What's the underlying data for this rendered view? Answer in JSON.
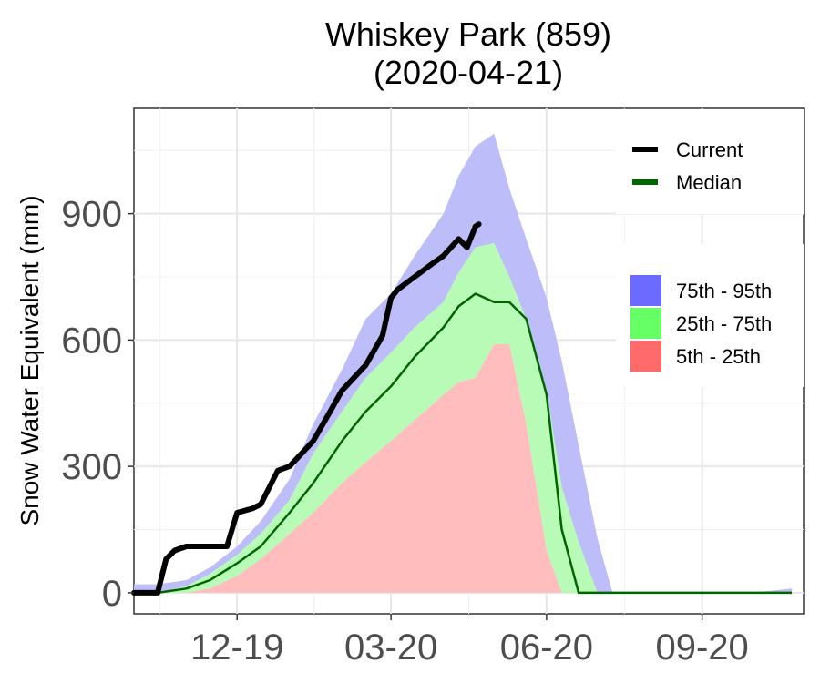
{
  "chart_data": {
    "type": "area",
    "title": "Whiskey Park (859)",
    "subtitle": "(2020-04-21)",
    "ylabel": "Snow Water Equivalent (mm)",
    "xlabel": "",
    "x_ticks": [
      "12-19",
      "03-20",
      "06-20",
      "09-20"
    ],
    "y_ticks": [
      0,
      300,
      600,
      900
    ],
    "xlim": [
      "2019-10-01",
      "2020-10-31"
    ],
    "ylim": [
      -50,
      1150
    ],
    "grid": true,
    "legend_lines": [
      {
        "name": "Current",
        "color": "#000000"
      },
      {
        "name": "Median",
        "color": "#006400"
      }
    ],
    "legend_bands": [
      {
        "name": "75th - 95th",
        "color": "#6b6bff"
      },
      {
        "name": "25th - 75th",
        "color": "#66ff66"
      },
      {
        "name": "5th - 25th",
        "color": "#ff6b6b"
      }
    ],
    "band_colors": {
      "p95": "#bdbdf9",
      "p75": "#b7fbb7",
      "p25": "#ffbdbd"
    },
    "dates": [
      "2019-10-01",
      "2019-10-15",
      "2019-11-01",
      "2019-11-15",
      "2019-12-01",
      "2019-12-15",
      "2020-01-01",
      "2020-01-15",
      "2020-02-01",
      "2020-02-15",
      "2020-03-01",
      "2020-03-15",
      "2020-04-01",
      "2020-04-10",
      "2020-04-20",
      "2020-05-01",
      "2020-05-10",
      "2020-05-20",
      "2020-06-01",
      "2020-06-10",
      "2020-06-20",
      "2020-07-01",
      "2020-07-10",
      "2020-07-20",
      "2020-08-01",
      "2020-09-01",
      "2020-10-01",
      "2020-10-24"
    ],
    "p95": [
      20,
      20,
      30,
      60,
      110,
      170,
      270,
      400,
      530,
      650,
      710,
      800,
      900,
      990,
      1060,
      1090,
      960,
      840,
      700,
      550,
      350,
      130,
      0,
      0,
      0,
      0,
      0,
      10
    ],
    "p75": [
      0,
      0,
      15,
      45,
      90,
      140,
      220,
      330,
      430,
      510,
      570,
      630,
      690,
      760,
      820,
      830,
      750,
      650,
      480,
      250,
      120,
      0,
      0,
      0,
      0,
      0,
      0,
      0
    ],
    "median": [
      0,
      0,
      10,
      30,
      70,
      110,
      190,
      260,
      360,
      430,
      490,
      560,
      630,
      680,
      710,
      690,
      690,
      650,
      470,
      150,
      0,
      0,
      0,
      0,
      0,
      0,
      0,
      0
    ],
    "p25": [
      0,
      0,
      0,
      10,
      40,
      80,
      140,
      190,
      260,
      310,
      360,
      410,
      470,
      500,
      510,
      590,
      590,
      400,
      100,
      0,
      0,
      0,
      0,
      0,
      0,
      0,
      0,
      0
    ],
    "current": {
      "dates": [
        "2019-10-01",
        "2019-10-15",
        "2019-10-20",
        "2019-10-25",
        "2019-11-01",
        "2019-11-05",
        "2019-11-25",
        "2019-12-01",
        "2019-12-10",
        "2019-12-15",
        "2019-12-25",
        "2020-01-01",
        "2020-01-15",
        "2020-01-25",
        "2020-02-01",
        "2020-02-15",
        "2020-02-25",
        "2020-03-01",
        "2020-03-05",
        "2020-03-15",
        "2020-03-25",
        "2020-04-01",
        "2020-04-10",
        "2020-04-15",
        "2020-04-20",
        "2020-04-22"
      ],
      "values": [
        0,
        0,
        80,
        100,
        110,
        110,
        110,
        190,
        200,
        210,
        290,
        300,
        360,
        430,
        480,
        540,
        610,
        700,
        720,
        750,
        780,
        800,
        840,
        820,
        870,
        875
      ]
    }
  }
}
